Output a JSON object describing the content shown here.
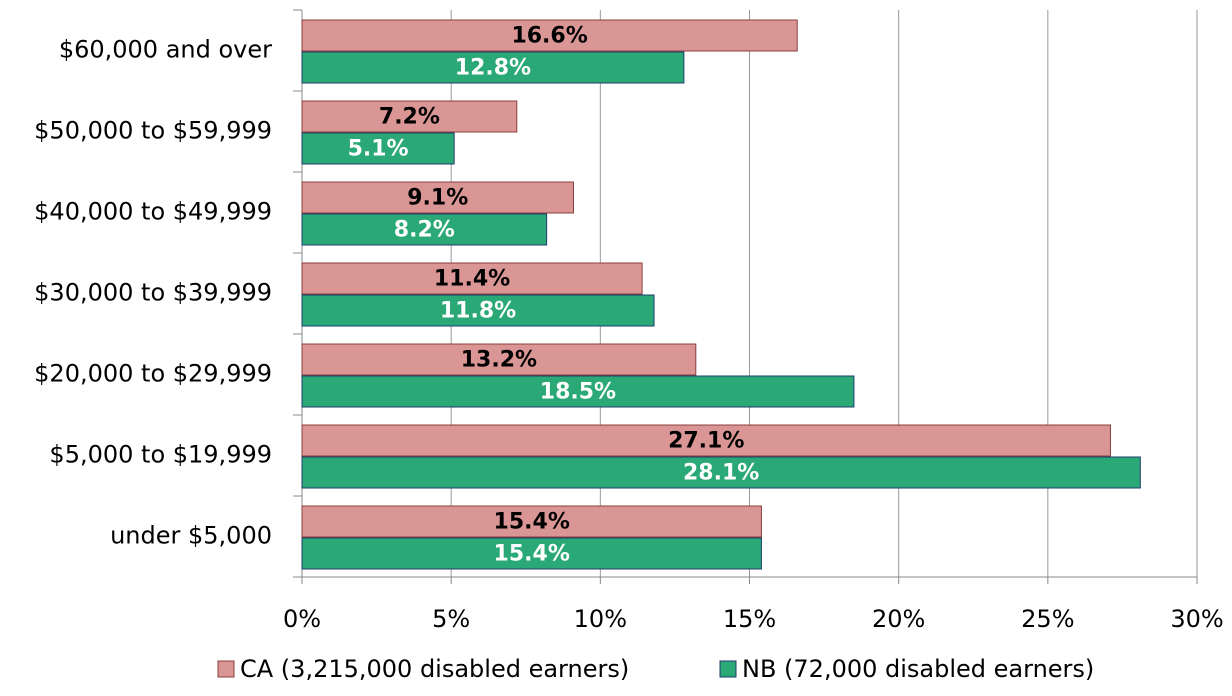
{
  "chart_data": {
    "type": "hbar",
    "categories": [
      "$60,000 and over",
      "$50,000 to $59,999",
      "$40,000 to $49,999",
      "$30,000 to $39,999",
      "$20,000 to $29,999",
      "$5,000 to $19,999",
      "under $5,000"
    ],
    "series": [
      {
        "name": "CA (3,215,000 disabled earners)",
        "color": "#d99694",
        "values": [
          16.6,
          7.2,
          9.1,
          11.4,
          13.2,
          27.1,
          15.4
        ],
        "value_labels": [
          "16.6%",
          "7.2%",
          "9.1%",
          "11.4%",
          "13.2%",
          "27.1%",
          "15.4%"
        ]
      },
      {
        "name": "NB (72,000 disabled earners)",
        "color": "#2aa876",
        "values": [
          12.8,
          5.1,
          8.2,
          11.8,
          18.5,
          28.1,
          15.4
        ],
        "value_labels": [
          "12.8%",
          "5.1%",
          "8.2%",
          "11.8%",
          "18.5%",
          "28.1%",
          "15.4%"
        ]
      }
    ],
    "xlim": [
      0,
      30
    ],
    "xticks": [
      {
        "value": 0,
        "label": "0%"
      },
      {
        "value": 5,
        "label": "5%"
      },
      {
        "value": 10,
        "label": "10%"
      },
      {
        "value": 15,
        "label": "15%"
      },
      {
        "value": 20,
        "label": "20%"
      },
      {
        "value": 25,
        "label": "25%"
      },
      {
        "value": 30,
        "label": "30%"
      }
    ],
    "grid": true,
    "legend": "bottom"
  }
}
